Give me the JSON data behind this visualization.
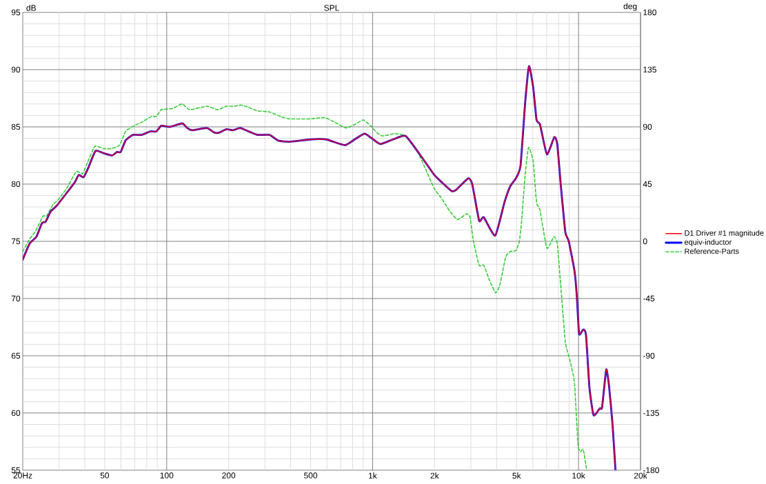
{
  "chart_data": {
    "type": "line",
    "title": "SPL",
    "ylabel": "dB",
    "y2label": "deg",
    "log": "x",
    "grid": true,
    "legend": "right",
    "xlim": [
      20,
      20000
    ],
    "ylim": [
      55,
      95
    ],
    "xticks": [
      {
        "value": 20,
        "label": "20Hz"
      },
      50,
      100,
      200,
      500,
      {
        "value": 1000,
        "label": "1k"
      },
      {
        "value": 2000,
        "label": "2k"
      },
      {
        "value": 5000,
        "label": "5k"
      },
      {
        "value": 10000,
        "label": "10k"
      },
      {
        "value": 20000,
        "label": "20k"
      }
    ],
    "yticks": [
      55,
      60,
      65,
      70,
      75,
      80,
      85,
      90,
      95
    ],
    "y2lim": [
      -180,
      180
    ],
    "y2ticks": [
      -180,
      -135,
      -90,
      -45,
      0,
      45,
      90,
      135,
      180
    ],
    "series": [
      {
        "name": "D1 Driver #1 magnitude",
        "color": "#ff0000",
        "line_style": "solid",
        "x": [
          20,
          21.6,
          23.3,
          24.8,
          25.8,
          27.3,
          29.2,
          32.6,
          35.9,
          37.4,
          39.5,
          41.8,
          45.1,
          49.3,
          54.3,
          57.3,
          59.8,
          63.1,
          68.6,
          75.5,
          83.2,
          89.1,
          94.1,
          103.6,
          118.9,
          125.7,
          132.8,
          156.6,
          170.2,
          179.8,
          195.3,
          209.2,
          227.1,
          250.2,
          275.4,
          316,
          348,
          393.8,
          497.9,
          595.5,
          731.8,
          817.4,
          912.7,
          991,
          1090,
          1256,
          1446,
          1709,
          1994,
          2154,
          2417,
          2545,
          2915,
          3046,
          3291,
          3465,
          3938,
          4366,
          4656,
          4964,
          5227,
          5505,
          5746,
          6018,
          6254,
          6501,
          7022,
          7625,
          7883,
          8192,
          8628,
          8967,
          9559,
          9812,
          10068,
          10544,
          10873,
          11300,
          11835,
          12686,
          13014,
          13630,
          14059,
          14610,
          15117
        ],
        "values": [
          73.4,
          74.8,
          75.4,
          76.6,
          76.7,
          77.6,
          78.1,
          79.2,
          80.2,
          80.8,
          80.6,
          81.5,
          82.9,
          82.7,
          82.5,
          82.8,
          82.8,
          83.8,
          84.3,
          84.3,
          84.6,
          84.6,
          85.1,
          85.0,
          85.3,
          84.9,
          84.7,
          84.9,
          84.5,
          84.5,
          84.8,
          84.7,
          84.9,
          84.6,
          84.3,
          84.3,
          83.8,
          83.7,
          83.9,
          83.9,
          83.4,
          83.9,
          84.4,
          84.0,
          83.5,
          83.9,
          84.2,
          82.5,
          80.8,
          80.2,
          79.4,
          79.5,
          80.5,
          80.0,
          76.8,
          77.1,
          75.5,
          78.4,
          79.8,
          80.5,
          81.6,
          87.1,
          90.3,
          88.5,
          85.6,
          85.2,
          82.6,
          84.1,
          83.5,
          80.0,
          75.8,
          75.0,
          72.4,
          70.2,
          66.9,
          67.3,
          66.8,
          62.2,
          59.8,
          60.4,
          60.5,
          63.8,
          62.4,
          59.1,
          55.0
        ]
      },
      {
        "name": "equiv-inductor",
        "color": "#0000ff",
        "line_style": "solid",
        "x": [
          20,
          21.6,
          23.3,
          24.8,
          25.8,
          27.3,
          29.2,
          32.6,
          35.9,
          37.4,
          39.5,
          41.8,
          45.1,
          49.3,
          54.3,
          57.3,
          59.8,
          63.1,
          68.6,
          75.5,
          83.2,
          89.1,
          94.1,
          103.6,
          118.9,
          125.7,
          132.8,
          156.6,
          170.2,
          179.8,
          195.3,
          209.2,
          227.1,
          250.2,
          275.4,
          316,
          348,
          393.8,
          497.9,
          595.5,
          731.8,
          817.4,
          912.7,
          991,
          1090,
          1256,
          1446,
          1709,
          1994,
          2154,
          2417,
          2545,
          2915,
          3046,
          3291,
          3465,
          3938,
          4366,
          4656,
          4964,
          5227,
          5505,
          5746,
          6018,
          6254,
          6501,
          7022,
          7625,
          7883,
          8192,
          8628,
          8967,
          9559,
          9812,
          10068,
          10544,
          10873,
          11300,
          11835,
          12686,
          13014,
          13630,
          14059,
          14610,
          15117
        ],
        "values": [
          73.4,
          74.8,
          75.4,
          76.6,
          76.7,
          77.6,
          78.1,
          79.2,
          80.2,
          80.8,
          80.6,
          81.5,
          82.9,
          82.7,
          82.5,
          82.8,
          82.8,
          83.8,
          84.3,
          84.3,
          84.6,
          84.6,
          85.1,
          85.0,
          85.3,
          84.9,
          84.7,
          84.9,
          84.5,
          84.5,
          84.8,
          84.7,
          84.9,
          84.6,
          84.3,
          84.3,
          83.8,
          83.7,
          83.9,
          83.9,
          83.4,
          83.9,
          84.4,
          84.0,
          83.5,
          83.9,
          84.2,
          82.5,
          80.8,
          80.2,
          79.4,
          79.5,
          80.5,
          80.0,
          76.8,
          77.1,
          75.5,
          78.4,
          79.8,
          80.5,
          81.6,
          87.1,
          90.3,
          88.5,
          85.6,
          85.2,
          82.6,
          84.1,
          83.5,
          80.0,
          75.8,
          75.0,
          72.4,
          70.2,
          66.9,
          67.3,
          66.8,
          62.2,
          59.8,
          60.4,
          60.5,
          63.8,
          62.4,
          59.1,
          55.0
        ]
      },
      {
        "name": "Reference-Parts",
        "color": "#33cc33",
        "line_style": "dashed",
        "x": [
          20,
          21.6,
          23.1,
          25.1,
          26.1,
          28.0,
          29.6,
          32.6,
          36.4,
          39.0,
          41.3,
          44.8,
          49.3,
          53.6,
          59.0,
          63.1,
          69.5,
          75.5,
          84.3,
          89.1,
          94.1,
          106.5,
          118.9,
          129.2,
          156.6,
          177.4,
          195.3,
          212.2,
          229.2,
          250.2,
          275.4,
          316,
          357.7,
          393.8,
          497.9,
          587.4,
          656,
          742.8,
          817.4,
          900.3,
          977.4,
          1049,
          1118,
          1274,
          1446,
          1667,
          1994,
          2154,
          2357,
          2578,
          2860,
          2973,
          3088,
          3291,
          3465,
          3695,
          3959,
          4149,
          4424,
          4656,
          4964,
          5160,
          5294,
          5505,
          5718,
          6018,
          6254,
          6501,
          7022,
          7583,
          7883,
          8192,
          8628,
          9083,
          9559,
          9933,
          10196,
          10544,
          10956
        ],
        "values": [
          74.1,
          75.2,
          75.9,
          77.2,
          77.2,
          78.2,
          78.6,
          79.6,
          81.1,
          80.9,
          81.9,
          83.3,
          83.1,
          83.1,
          83.4,
          84.6,
          85.1,
          85.4,
          85.9,
          85.9,
          86.5,
          86.6,
          87.0,
          86.5,
          86.8,
          86.5,
          86.8,
          86.8,
          86.9,
          86.7,
          86.4,
          86.3,
          85.9,
          85.7,
          85.7,
          85.8,
          85.4,
          84.9,
          85.2,
          85.6,
          85.1,
          84.5,
          84.2,
          84.4,
          84.2,
          82.7,
          79.6,
          78.8,
          77.7,
          76.9,
          77.4,
          77.1,
          75.0,
          72.9,
          72.9,
          71.6,
          70.5,
          71.2,
          73.6,
          74.1,
          74.2,
          75.0,
          76.8,
          80.8,
          83.2,
          82.0,
          78.4,
          77.7,
          74.4,
          75.4,
          74.8,
          71.2,
          66.2,
          64.6,
          62.6,
          57.3,
          56.6,
          56.8,
          55.0
        ]
      }
    ]
  }
}
